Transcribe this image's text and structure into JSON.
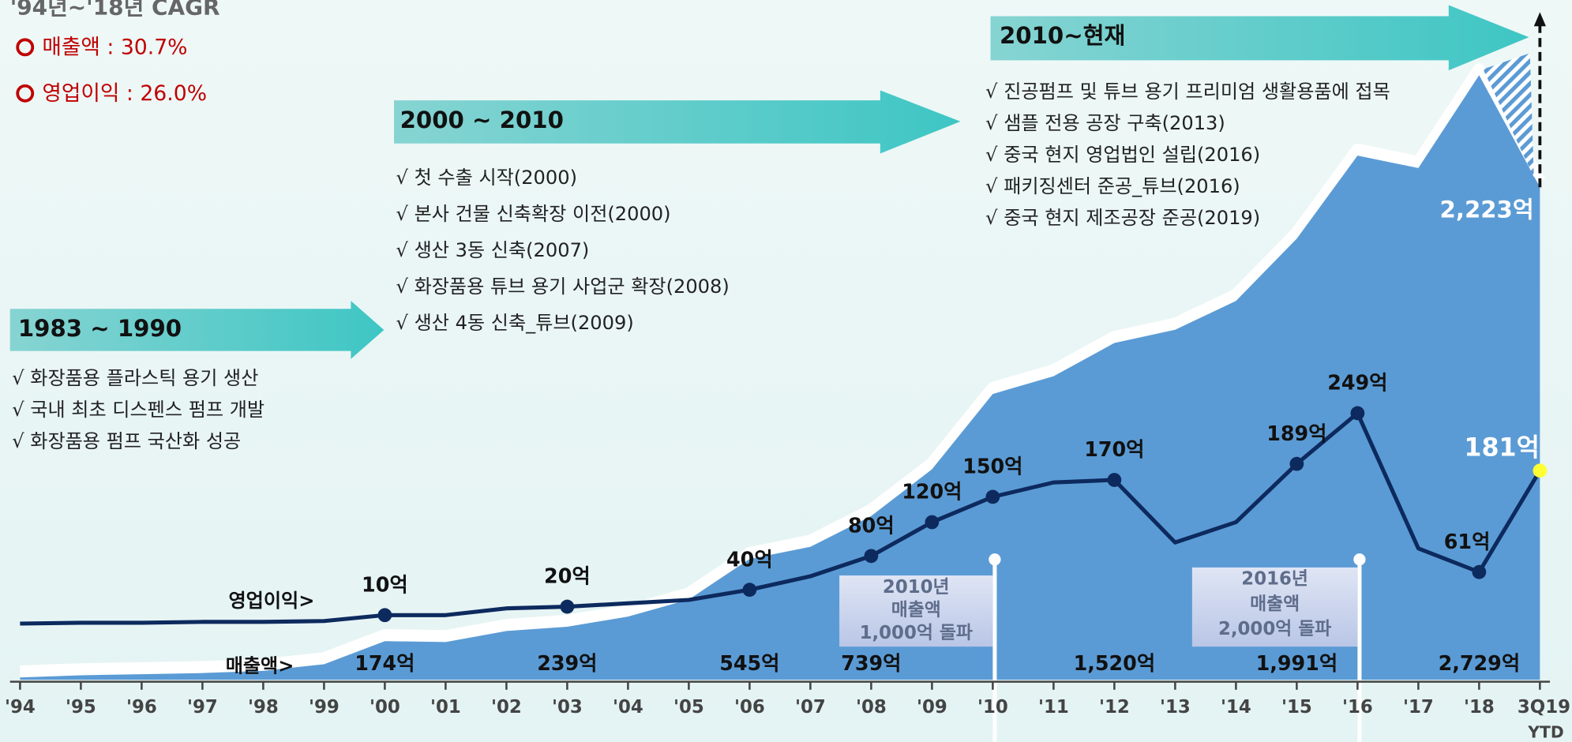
{
  "chart_data": {
    "type": "area-line",
    "categories": [
      "'94",
      "'95",
      "'96",
      "'97",
      "'98",
      "'99",
      "'00",
      "'01",
      "'02",
      "'03",
      "'04",
      "'05",
      "'06",
      "'07",
      "'08",
      "'09",
      "'10",
      "'11",
      "'12",
      "'13",
      "'14",
      "'15",
      "'16",
      "'17",
      "'18",
      "3Q19"
    ],
    "category_note": "YTD",
    "ylim": [
      0,
      3000
    ],
    "y2lim": [
      0,
      720
    ],
    "series": [
      {
        "name": "매출액>",
        "color": "#5b9bd5",
        "values": [
          10,
          20,
          25,
          30,
          40,
          70,
          174,
          170,
          220,
          239,
          285,
          362,
          545,
          600,
          739,
          950,
          1290,
          1370,
          1520,
          1580,
          1710,
          1991,
          2366,
          2310,
          2729,
          2223
        ],
        "value_labels": [
          null,
          null,
          null,
          null,
          null,
          null,
          "174억",
          null,
          null,
          "239억",
          null,
          null,
          "545억",
          null,
          "739억",
          null,
          null,
          null,
          "1,520억",
          null,
          null,
          "1,991억",
          null,
          null,
          "2,729억",
          "2,223억"
        ]
      },
      {
        "name": "영업이익>",
        "color": "#0d2a5e",
        "axis": "y2",
        "values": [
          0,
          1,
          1,
          2,
          2,
          3,
          10,
          10,
          18,
          20,
          24,
          28,
          40,
          56,
          80,
          120,
          150,
          167,
          170,
          96,
          120,
          189,
          249,
          89,
          61,
          181
        ],
        "value_labels": [
          null,
          null,
          null,
          null,
          null,
          null,
          "10억",
          null,
          null,
          "20억",
          null,
          null,
          "40억",
          null,
          "80억",
          "120억",
          "150억",
          null,
          "170억",
          null,
          null,
          "189억",
          "249억",
          null,
          "61억",
          "181억"
        ]
      }
    ],
    "cagr": {
      "title": "'94년~'18년 CAGR",
      "items": [
        "매출액 : 30.7%",
        "영업이익 : 26.0%"
      ]
    },
    "periods": [
      {
        "title": "1983 ~ 1990",
        "items": [
          "√ 화장품용 플라스틱 용기 생산",
          "√ 국내 최초 디스펜스 펌프 개발",
          "√ 화장품용 펌프 국산화 성공"
        ]
      },
      {
        "title": "2000 ~ 2010",
        "items": [
          "√ 첫 수출 시작(2000)",
          "√ 본사 건물 신축확장 이전(2000)",
          "√ 생산 3동 신축(2007)",
          "√ 화장품용 튜브 용기 사업군 확장(2008)",
          "√ 생산 4동 신축_튜브(2009)"
        ]
      },
      {
        "title": "2010~현재",
        "items": [
          "√ 진공펌프 및 튜브 용기 프리미엄 생활용품에 접목",
          "√ 샘플 전용 공장 구축(2013)",
          "√ 중국 현지 영업법인 설립(2016)",
          "√ 패키징센터 준공_튜브(2016)",
          "√ 중국 현지 제조공장 준공(2019)"
        ]
      }
    ],
    "annotations": [
      {
        "category": 16,
        "lines": [
          "2010년",
          "매출액",
          "1,000억 돌파"
        ]
      },
      {
        "category": 22,
        "lines": [
          "2016년",
          "매출액",
          "2,000억 돌파"
        ]
      }
    ]
  }
}
